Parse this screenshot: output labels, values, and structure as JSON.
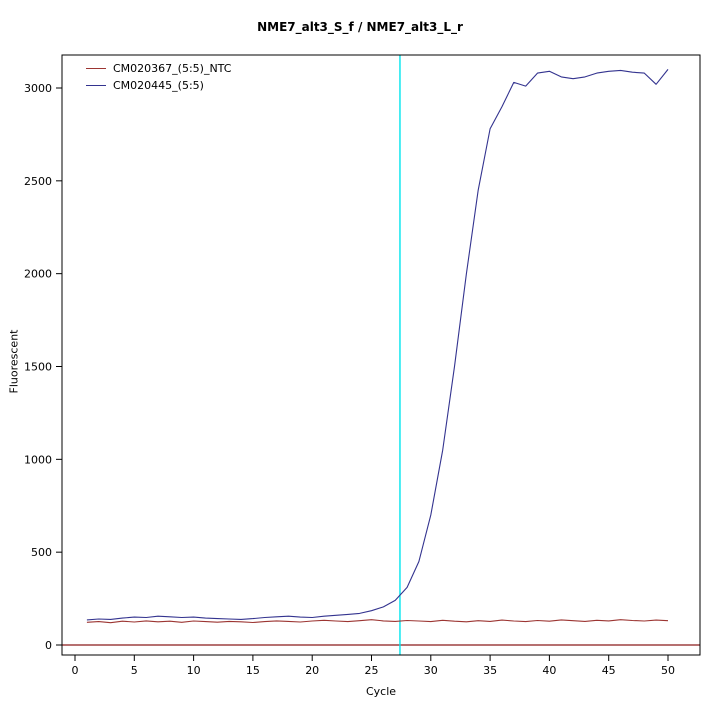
{
  "chart_data": {
    "type": "line",
    "title": "NME7_alt3_S_f / NME7_alt3_L_r",
    "xlabel": "Cycle",
    "ylabel": "Fluorescent",
    "xlim": [
      0,
      51
    ],
    "ylim": [
      -55,
      3180
    ],
    "grid": false,
    "legend_position": "top-left",
    "x_ticks": [
      0,
      5,
      10,
      15,
      20,
      25,
      30,
      35,
      40,
      45,
      50
    ],
    "y_ticks": [
      0,
      500,
      1000,
      1500,
      2000,
      2500,
      3000
    ],
    "ct_line_x": 27.4,
    "ct_line_color": "#00e5ee",
    "baseline_y": 0,
    "baseline_color": "#8b1a1a",
    "x": [
      1,
      2,
      3,
      4,
      5,
      6,
      7,
      8,
      9,
      10,
      11,
      12,
      13,
      14,
      15,
      16,
      17,
      18,
      19,
      20,
      21,
      22,
      23,
      24,
      25,
      26,
      27,
      28,
      29,
      30,
      31,
      32,
      33,
      34,
      35,
      36,
      37,
      38,
      39,
      40,
      41,
      42,
      43,
      44,
      45,
      46,
      47,
      48,
      49,
      50
    ],
    "series": [
      {
        "name": "CM020367_(5:5)_NTC",
        "color": "#9c3532",
        "values": [
          122,
          126,
          120,
          128,
          124,
          130,
          125,
          128,
          122,
          129,
          126,
          123,
          127,
          125,
          121,
          126,
          130,
          127,
          124,
          129,
          133,
          129,
          126,
          131,
          136,
          130,
          127,
          132,
          129,
          126,
          133,
          128,
          125,
          131,
          127,
          134,
          129,
          126,
          132,
          128,
          135,
          131,
          127,
          133,
          130,
          136,
          132,
          129,
          134,
          131
        ]
      },
      {
        "name": "CM020445_(5:5)",
        "color": "#33338f",
        "values": [
          135,
          140,
          138,
          145,
          150,
          148,
          155,
          152,
          148,
          150,
          145,
          142,
          140,
          138,
          142,
          148,
          152,
          155,
          150,
          148,
          155,
          160,
          165,
          170,
          185,
          205,
          240,
          310,
          450,
          700,
          1050,
          1500,
          2000,
          2450,
          2780,
          2900,
          3030,
          3010,
          3080,
          3090,
          3060,
          3050,
          3060,
          3080,
          3090,
          3095,
          3085,
          3080,
          3020,
          3100
        ]
      }
    ]
  }
}
